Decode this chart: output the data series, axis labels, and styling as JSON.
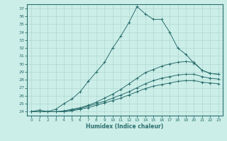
{
  "xlabel": "Humidex (Indice chaleur)",
  "ylabel": "",
  "background_color": "#cceee8",
  "line_color": "#2a6e6e",
  "grid_color": "#b0d8d0",
  "xlim": [
    -0.5,
    23.5
  ],
  "ylim": [
    23.5,
    37.5
  ],
  "yticks": [
    24,
    25,
    26,
    27,
    28,
    29,
    30,
    31,
    32,
    33,
    34,
    35,
    36,
    37
  ],
  "xticks": [
    0,
    1,
    2,
    3,
    4,
    5,
    6,
    7,
    8,
    9,
    10,
    11,
    12,
    13,
    14,
    15,
    16,
    17,
    18,
    19,
    20,
    21,
    22,
    23
  ],
  "curves": [
    {
      "x": [
        0,
        1,
        2,
        3,
        4,
        5,
        6,
        7,
        8,
        9,
        10,
        11,
        12,
        13,
        14,
        15,
        16,
        17,
        18,
        19,
        20,
        21,
        22,
        23
      ],
      "y": [
        24.0,
        24.2,
        24.0,
        24.3,
        25.0,
        25.6,
        26.5,
        27.8,
        29.0,
        30.2,
        32.0,
        33.5,
        35.2,
        37.2,
        36.3,
        35.6,
        35.6,
        34.0,
        32.0,
        31.2,
        30.1,
        29.2,
        28.8,
        28.7
      ]
    },
    {
      "x": [
        0,
        1,
        2,
        3,
        4,
        5,
        6,
        7,
        8,
        9,
        10,
        11,
        12,
        13,
        14,
        15,
        16,
        17,
        18,
        19,
        20,
        21,
        22,
        23
      ],
      "y": [
        24.0,
        24.0,
        24.0,
        24.0,
        24.1,
        24.3,
        24.5,
        24.8,
        25.2,
        25.7,
        26.2,
        26.8,
        27.5,
        28.2,
        28.9,
        29.3,
        29.7,
        30.0,
        30.2,
        30.3,
        30.2,
        29.2,
        28.8,
        28.7
      ]
    },
    {
      "x": [
        0,
        1,
        2,
        3,
        4,
        5,
        6,
        7,
        8,
        9,
        10,
        11,
        12,
        13,
        14,
        15,
        16,
        17,
        18,
        19,
        20,
        21,
        22,
        23
      ],
      "y": [
        24.0,
        24.0,
        24.0,
        24.0,
        24.0,
        24.2,
        24.4,
        24.7,
        25.0,
        25.3,
        25.7,
        26.1,
        26.5,
        27.0,
        27.5,
        27.9,
        28.2,
        28.4,
        28.6,
        28.7,
        28.7,
        28.4,
        28.2,
        28.1
      ]
    },
    {
      "x": [
        0,
        1,
        2,
        3,
        4,
        5,
        6,
        7,
        8,
        9,
        10,
        11,
        12,
        13,
        14,
        15,
        16,
        17,
        18,
        19,
        20,
        21,
        22,
        23
      ],
      "y": [
        24.0,
        24.0,
        24.0,
        24.0,
        24.0,
        24.1,
        24.3,
        24.5,
        24.8,
        25.1,
        25.4,
        25.7,
        26.1,
        26.5,
        26.9,
        27.2,
        27.4,
        27.6,
        27.8,
        27.9,
        27.9,
        27.7,
        27.6,
        27.5
      ]
    }
  ]
}
